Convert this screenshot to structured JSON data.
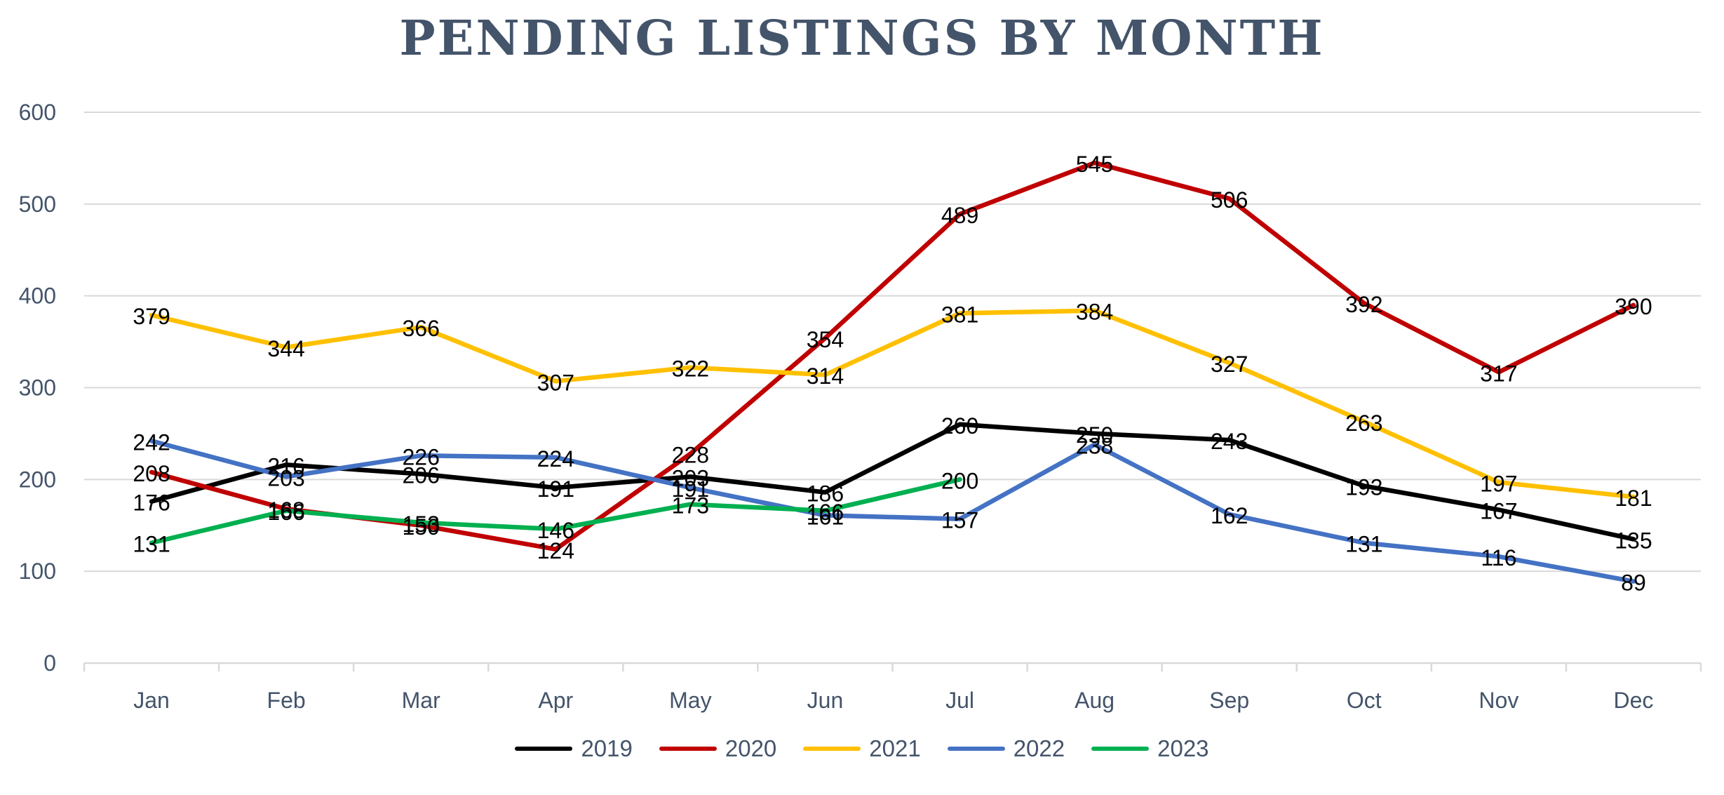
{
  "chart_data": {
    "type": "line",
    "title": "PENDING LISTINGS BY MONTH",
    "xlabel": "",
    "ylabel": "",
    "categories": [
      "Jan",
      "Feb",
      "Mar",
      "Apr",
      "May",
      "Jun",
      "Jul",
      "Aug",
      "Sep",
      "Oct",
      "Nov",
      "Dec"
    ],
    "yticks": [
      0,
      100,
      200,
      300,
      400,
      500,
      600
    ],
    "ylim": [
      0,
      600
    ],
    "grid": true,
    "legend_position": "bottom",
    "series": [
      {
        "name": "2019",
        "color": "#000000",
        "values": [
          176,
          216,
          206,
          191,
          203,
          186,
          260,
          250,
          243,
          193,
          167,
          135
        ]
      },
      {
        "name": "2020",
        "color": "#c00000",
        "values": [
          208,
          168,
          150,
          124,
          228,
          354,
          489,
          545,
          506,
          392,
          317,
          390
        ]
      },
      {
        "name": "2021",
        "color": "#ffc000",
        "values": [
          379,
          344,
          366,
          307,
          322,
          314,
          381,
          384,
          327,
          263,
          197,
          181
        ]
      },
      {
        "name": "2022",
        "color": "#4472c4",
        "values": [
          242,
          203,
          226,
          224,
          191,
          161,
          157,
          238,
          162,
          131,
          116,
          89
        ]
      },
      {
        "name": "2023",
        "color": "#00b050",
        "values": [
          131,
          166,
          153,
          146,
          173,
          166,
          200,
          null,
          null,
          null,
          null,
          null
        ]
      }
    ]
  },
  "colors": {
    "title": "#44546a",
    "axis_text": "#44546a",
    "gridline": "#d9d9d9",
    "data_label": "#000000"
  }
}
